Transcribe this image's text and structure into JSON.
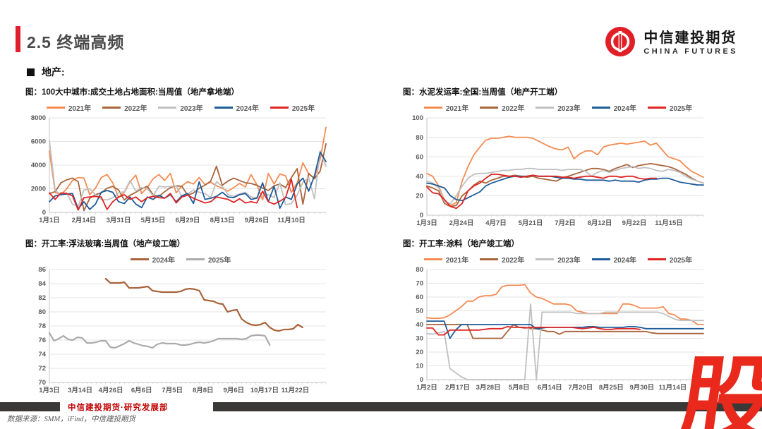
{
  "page": {
    "title": "2.5 终端高频",
    "section_label": "地产:",
    "logo": {
      "cn": "中信建投期货",
      "en": "CHINA FUTURES"
    },
    "footer": {
      "dept": "中信建投期货·研究发展部",
      "source": "数据来源：SMM，iFind，中信建投期货",
      "watermark": "股"
    },
    "colors": {
      "accent_red": "#E01F2D",
      "footer_bar": "#3B3838",
      "footer_text": "#C00000",
      "watermark_red": "#E8291C"
    }
  },
  "chart_data": [
    {
      "type": "line",
      "title": "图：100大中城市:成交土地占地面积:当周值（地产拿地端）",
      "ylim": [
        0,
        8000
      ],
      "yticks": [
        0,
        2000,
        4000,
        6000,
        8000
      ],
      "grid": "horizontal",
      "legend_position": "top",
      "x_ticklabels": [
        "1月1日",
        "2月14日",
        "3月31日",
        "5月15日",
        "6月29日",
        "8月13日",
        "9月26日",
        "11月10日"
      ],
      "series": [
        {
          "name": "2021年",
          "color": "#F58B53",
          "values": [
            5200,
            1700,
            1500,
            2000,
            2700,
            2950,
            2900,
            1500,
            2050,
            2950,
            3200,
            2500,
            1250,
            1700,
            2600,
            3150,
            1600,
            2100,
            2850,
            3200,
            2700,
            3300,
            1650,
            2250,
            2600,
            2400,
            2950,
            2350,
            2550,
            2250,
            2050,
            1800,
            2100,
            2450,
            2150,
            3200,
            2350,
            1050,
            3300,
            2400,
            3250,
            3100,
            1700,
            2500,
            4200,
            3250,
            2900,
            4500,
            7200
          ]
        },
        {
          "name": "2022年",
          "color": "#A9643B",
          "values": [
            1600,
            1750,
            2500,
            2750,
            2900,
            2600,
            150,
            1200,
            1500,
            1650,
            2050,
            2200,
            1900,
            1050,
            1450,
            1700,
            2000,
            2200,
            1500,
            1350,
            1750,
            2100,
            2250,
            2200,
            1450,
            1650,
            2050,
            2300,
            2650,
            3900,
            2300,
            2650,
            2900,
            2700,
            2500,
            2450,
            2300,
            2050,
            1850,
            2250,
            2400,
            2100,
            2950,
            3700,
            700,
            3300,
            2850,
            3500,
            5800
          ]
        },
        {
          "name": "2023年",
          "color": "#C0C0C0",
          "values": [
            6100,
            1850,
            1500,
            1650,
            700,
            500,
            1900,
            2000,
            1500,
            1100,
            1050,
            1250,
            1650,
            1750,
            2700,
            1800,
            2100,
            2000,
            1400,
            2200,
            2150,
            2200,
            2250,
            1300,
            1550,
            1900,
            1700,
            1600,
            1250,
            2600,
            2200,
            1500,
            1350,
            1550,
            1700,
            1300,
            1250,
            1450,
            1500,
            1250,
            2500,
            650,
            750,
            1450,
            2550,
            2950,
            1150,
            5200,
            3900
          ]
        },
        {
          "name": "2024年",
          "color": "#1F5C99",
          "values": [
            900,
            1400,
            1500,
            1550,
            1600,
            300,
            900,
            250,
            700,
            1700,
            1850,
            1700,
            900,
            750,
            1300,
            700,
            400,
            1300,
            1100,
            1450,
            1200,
            1500,
            900,
            1400,
            1600,
            750,
            2600,
            1100,
            1200,
            1350,
            1700,
            1300,
            1250,
            1500,
            1600,
            1100,
            1200,
            2500,
            900,
            2200,
            350,
            1300,
            1100,
            2400,
            2900,
            1800,
            3100,
            5100,
            4300
          ]
        },
        {
          "name": "2025年",
          "color": "#E02424",
          "values": [
            1650,
            1100,
            1650,
            1600,
            1400,
            200,
            1250,
            1300,
            1350,
            1300,
            250,
            900,
            1300,
            1500,
            1100,
            1300,
            900,
            1250,
            1350,
            1250,
            1200,
            1600,
            800,
            1300,
            1450,
            1200,
            1000,
            800,
            900,
            1300,
            1200,
            1100,
            850,
            1150,
            800,
            900,
            800,
            1800,
            900,
            700,
            950,
            1250,
            2800,
            400
          ]
        }
      ]
    },
    {
      "type": "line",
      "title": "图：水泥发运率:全国:当周值（地产开工端）",
      "ylim": [
        0,
        100
      ],
      "yticks": [
        0,
        20,
        40,
        60,
        80,
        100
      ],
      "grid": "horizontal",
      "legend_position": "top",
      "x_ticklabels": [
        "1月3日",
        "2月24日",
        "4月7日",
        "5月21日",
        "7月2日",
        "8月12日",
        "9月22日",
        "11月15日"
      ],
      "series": [
        {
          "name": "2021年",
          "color": "#F58B53",
          "values": [
            43,
            40,
            30,
            15,
            10,
            13,
            35,
            50,
            62,
            70,
            77,
            79,
            79,
            80,
            81,
            80,
            80,
            80,
            79,
            76,
            73,
            70,
            68,
            67,
            70,
            58,
            63,
            66,
            66,
            62,
            70,
            72,
            73,
            74,
            73,
            74,
            75,
            76,
            72,
            74,
            67,
            60,
            58,
            56,
            50,
            45,
            42,
            39
          ]
        },
        {
          "name": "2022年",
          "color": "#A9643B",
          "values": [
            30,
            28,
            25,
            12,
            9,
            10,
            20,
            25,
            31,
            35,
            33,
            36,
            38,
            40,
            40,
            41,
            40,
            39,
            40,
            38,
            37,
            36,
            35,
            38,
            40,
            42,
            44,
            46,
            48,
            48,
            47,
            45,
            48,
            50,
            52,
            49,
            51,
            52,
            53,
            52,
            51,
            50,
            48,
            45,
            42,
            38,
            35,
            33
          ]
        },
        {
          "name": "2023年",
          "color": "#C0C0C0",
          "values": [
            35,
            33,
            28,
            14,
            12,
            20,
            30,
            38,
            42,
            43,
            43,
            44,
            45,
            46,
            46,
            47,
            47,
            48,
            48,
            47,
            47,
            47,
            47,
            46,
            47,
            47,
            47,
            45,
            40,
            44,
            46,
            44,
            46,
            48,
            49,
            50,
            48,
            49,
            48,
            46,
            45,
            47,
            46,
            44,
            40,
            37,
            35,
            33
          ]
        },
        {
          "name": "2024年",
          "color": "#1F5C99",
          "values": [
            33,
            32,
            30,
            28,
            20,
            16,
            15,
            18,
            21,
            24,
            30,
            33,
            35,
            37,
            39,
            40,
            40,
            40,
            41,
            40,
            40,
            40,
            39,
            38,
            38,
            37,
            37,
            36,
            36,
            36,
            36,
            35,
            36,
            35,
            35,
            35,
            34,
            36,
            37,
            37,
            38,
            38,
            36,
            34,
            33,
            32,
            31,
            31
          ]
        },
        {
          "name": "2025年",
          "color": "#E02424",
          "values": [
            29,
            23,
            22,
            16,
            9,
            7,
            12,
            25,
            30,
            33,
            38,
            42,
            42,
            41,
            40,
            40,
            39,
            40,
            41,
            40,
            40,
            40,
            40,
            39,
            39,
            38,
            39,
            40,
            40,
            39,
            38,
            40,
            40,
            39,
            40,
            40,
            38,
            37,
            38,
            38
          ]
        }
      ]
    },
    {
      "type": "line",
      "title": "图：开工率:浮法玻璃:当周值（地产竣工端）",
      "ylim": [
        70,
        86
      ],
      "yticks": [
        70,
        72,
        74,
        76,
        78,
        80,
        82,
        84,
        86
      ],
      "grid": "horizontal",
      "legend_position": "top",
      "x_ticklabels": [
        "1月3日",
        "3月14日",
        "4月26日",
        "6月6日",
        "7月5日",
        "8月8日",
        "9月6日",
        "10月17日",
        "11月22日"
      ],
      "series": [
        {
          "name": "2024年",
          "color": "#A9643B",
          "values": [
            null,
            null,
            null,
            null,
            null,
            null,
            null,
            null,
            null,
            null,
            null,
            null,
            84.7,
            84.1,
            84.1,
            84.1,
            84.2,
            83.4,
            83.4,
            83.4,
            83.5,
            83.6,
            83.0,
            82.9,
            82.8,
            82.8,
            82.8,
            82.8,
            82.9,
            83.2,
            83.3,
            83.2,
            83.0,
            81.7,
            81.6,
            81.5,
            81.2,
            81.1,
            80.0,
            80.2,
            80.3,
            79.0,
            78.5,
            78.2,
            78.1,
            78.2,
            78.5,
            77.8,
            77.4,
            77.3,
            77.5,
            77.5,
            77.6,
            78.2,
            77.8,
            null,
            null,
            null,
            null,
            null
          ]
        },
        {
          "name": "2025年",
          "color": "#ABABAB",
          "values": [
            77.0,
            75.9,
            76.2,
            76.6,
            76.1,
            76.0,
            76.4,
            76.3,
            75.6,
            75.6,
            75.7,
            75.9,
            75.9,
            75.0,
            74.9,
            75.2,
            75.5,
            75.9,
            75.6,
            75.4,
            75.2,
            75.1,
            74.9,
            75.4,
            75.6,
            75.5,
            75.5,
            75.5,
            75.3,
            75.3,
            75.4,
            75.6,
            75.7,
            75.6,
            75.7,
            75.9,
            76.2,
            76.2,
            76.2,
            76.2,
            76.2,
            76.1,
            76.2,
            76.6,
            76.7,
            76.7,
            76.6,
            75.3,
            null,
            null,
            null,
            null,
            null,
            null,
            null,
            null,
            null,
            null,
            null,
            null
          ]
        }
      ]
    },
    {
      "type": "line",
      "title": "图：开工率:涂料（地产竣工端）",
      "ylim": [
        0,
        80
      ],
      "yticks": [
        0,
        10,
        20,
        30,
        40,
        50,
        60,
        70,
        80
      ],
      "grid": "horizontal",
      "legend_position": "top",
      "x_ticklabels": [
        "1月2日",
        "2月17日",
        "3月28日",
        "5月8日",
        "6月14日",
        "7月20日",
        "8月25日",
        "9月30日",
        "11月14日"
      ],
      "series": [
        {
          "name": "2021年",
          "color": "#F58B53",
          "values": [
            45,
            44.5,
            44.5,
            45,
            47,
            50,
            53,
            57,
            57,
            60,
            61,
            61,
            62,
            67.5,
            68.5,
            68.5,
            68.5,
            69,
            63,
            60,
            59,
            57,
            55,
            55,
            55,
            54,
            50,
            49,
            48,
            48,
            48,
            48,
            48,
            48,
            55,
            55,
            54,
            52,
            52,
            52,
            52,
            53,
            48,
            47,
            44,
            44,
            43,
            40,
            40
          ]
        },
        {
          "name": "2022年",
          "color": "#A9643B",
          "values": [
            40,
            40,
            40,
            40,
            40,
            40,
            40,
            40,
            30,
            30,
            30,
            30,
            30,
            30,
            35,
            40,
            38,
            38,
            37,
            37,
            36,
            35,
            35,
            33,
            35,
            35,
            35,
            35,
            35,
            35,
            35,
            35,
            35,
            35,
            35,
            35,
            35,
            35,
            35,
            34,
            33.5,
            33.5,
            33.5,
            33.5,
            33.5,
            33.5,
            33.5,
            33.5,
            33.5
          ]
        },
        {
          "name": "2023年",
          "color": "#C0C0C0",
          "values": [
            33.5,
            33,
            34,
            35,
            8,
            5,
            2,
            0,
            0,
            0,
            0,
            0,
            0,
            0,
            0,
            0,
            0,
            0,
            55,
            0,
            49,
            49,
            49,
            49,
            49,
            49,
            48,
            48,
            48,
            48,
            48,
            49,
            49,
            49,
            49,
            49,
            49,
            49,
            49,
            49,
            49,
            48,
            46,
            44,
            43,
            43,
            43,
            43,
            43
          ]
        },
        {
          "name": "2024年",
          "color": "#1F5C99",
          "values": [
            42.5,
            42.5,
            42.5,
            42.5,
            30,
            36,
            40,
            40,
            40,
            40,
            40,
            40,
            40,
            40,
            40,
            40,
            40,
            40,
            40,
            37,
            37.5,
            38,
            38,
            38,
            38,
            38,
            38,
            38,
            38.5,
            38.5,
            38,
            38,
            38,
            38,
            38,
            38.5,
            38.5,
            38,
            37,
            37,
            37,
            37,
            37,
            37,
            37,
            37,
            37,
            37,
            37
          ]
        },
        {
          "name": "2025年",
          "color": "#E02424",
          "values": [
            37.5,
            37.5,
            32.5,
            32.5,
            36,
            36,
            36,
            36,
            36,
            36,
            36.5,
            37,
            37,
            37,
            38.5,
            38,
            38,
            37.5,
            38,
            38,
            38,
            38,
            38,
            38,
            38,
            38,
            37.5,
            37,
            37.5,
            38,
            37,
            36.5,
            36.5,
            37,
            37,
            37,
            37,
            36.5,
            null,
            null,
            null,
            null,
            null,
            null,
            null,
            null,
            null,
            null,
            null
          ]
        }
      ]
    }
  ]
}
